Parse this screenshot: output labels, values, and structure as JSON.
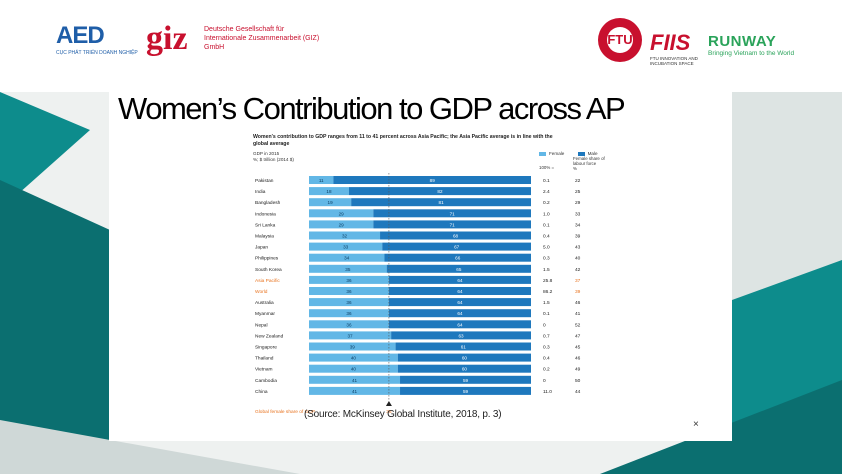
{
  "logos": {
    "aed": {
      "mark": "AED",
      "caption": "CỤC PHÁT TRIỂN DOANH NGHIỆP"
    },
    "giz": {
      "mark": "giz",
      "text": "Deutsche Gesellschaft für Internationale Zusammenarbeit (GIZ) GmbH"
    },
    "ftu": {
      "mark": "FTU"
    },
    "fiis": {
      "mark": "FIIS",
      "sub": "FTU INNOVATION AND INCUBATION SPACE"
    },
    "runway": {
      "mark": "RUNWAY",
      "tagline": "Bringing Vietnam to the World"
    }
  },
  "slide": {
    "title": "Women’s Contribution to GDP across AP",
    "source": "(Source: McKinsey Global Institute, 2018, p. 3)",
    "close_glyph": "×"
  },
  "colors": {
    "female": "#62b7e6",
    "male": "#1e78bd",
    "highlight": "#e8731f",
    "red": "#c8102e",
    "teal": "#0d8c8c",
    "green": "#2aa35a"
  },
  "chart_data": {
    "type": "bar",
    "stacked": true,
    "title": "Women's contribution to GDP ranges from 11 to 41 percent across Asia Pacific; the Asia Pacific average is in line with the global average",
    "meta": [
      "GDP in 2015",
      "%; $ trillion (2014 $)"
    ],
    "legend": [
      "Female",
      "Male"
    ],
    "col_100": "100% =",
    "col_share": "Female share of labour force",
    "col_share_unit": "%",
    "reference_label": "Global female share of GDP",
    "reference_value": 36,
    "categories": [
      "Pakistan",
      "India",
      "Bangladesh",
      "Indonesia",
      "Sri Lanka",
      "Malaysia",
      "Japan",
      "Philippines",
      "South Korea",
      "Asia Pacific",
      "World",
      "Australia",
      "Myanmar",
      "Nepal",
      "New Zealand",
      "Singapore",
      "Thailand",
      "Vietnam",
      "Cambodia",
      "China"
    ],
    "highlighted": [
      "Asia Pacific",
      "World"
    ],
    "series": [
      {
        "name": "Female",
        "values": [
          11,
          18,
          19,
          29,
          29,
          32,
          33,
          34,
          35,
          36,
          36,
          36,
          36,
          36,
          37,
          39,
          40,
          40,
          41,
          41
        ]
      },
      {
        "name": "Male",
        "values": [
          89,
          82,
          81,
          71,
          71,
          68,
          67,
          66,
          65,
          64,
          64,
          64,
          64,
          64,
          63,
          61,
          60,
          60,
          59,
          59
        ]
      }
    ],
    "gdp_total": [
      "0.1",
      "2.4",
      "0.2",
      "1.0",
      "0.1",
      "0.4",
      "5.0",
      "0.3",
      "1.5",
      "25.8",
      "86.2",
      "1.5",
      "0.1",
      "0",
      "0.7",
      "0.3",
      "0.4",
      "0.2",
      "0",
      "11.0"
    ],
    "female_labour_share": [
      "22",
      "25",
      "29",
      "33",
      "34",
      "39",
      "43",
      "40",
      "42",
      "37",
      "39",
      "46",
      "41",
      "52",
      "47",
      "45",
      "46",
      "49",
      "50",
      "44"
    ]
  }
}
